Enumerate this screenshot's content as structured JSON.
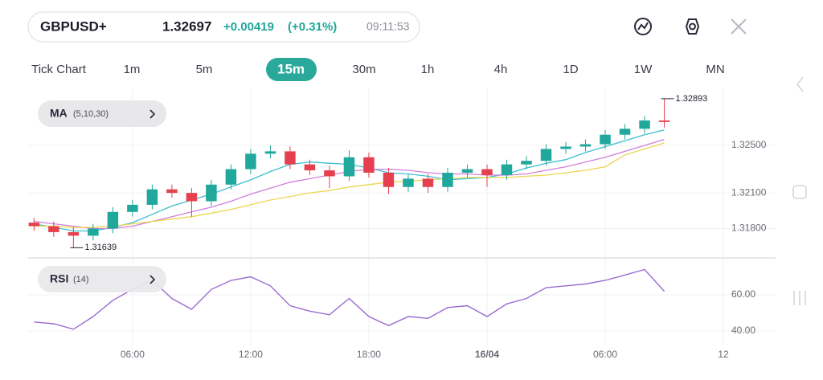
{
  "header": {
    "symbol": "GBPUSD+",
    "price": "1.32697",
    "change": "+0.00419",
    "change_percent": "(+0.31%)",
    "time": "09:11:53"
  },
  "timeframes": [
    "Tick Chart",
    "1m",
    "5m",
    "15m",
    "30m",
    "1h",
    "4h",
    "1D",
    "1W",
    "MN"
  ],
  "active_timeframe_index": 3,
  "chart_data": [
    {
      "type": "candlestick",
      "indicator": "MA",
      "params": "(5,10,30)",
      "up_color": "#1fa89b",
      "down_color": "#e5404f",
      "x": [
        1,
        2,
        3,
        4,
        5,
        6,
        7,
        8,
        9,
        10,
        11,
        12,
        13,
        14,
        15,
        16,
        17,
        18,
        19,
        20,
        21,
        22,
        23,
        24,
        25,
        26,
        27,
        28,
        29,
        30,
        31,
        32,
        33
      ],
      "open": [
        1.3185,
        1.3182,
        1.3177,
        1.3174,
        1.318,
        1.3194,
        1.32,
        1.3213,
        1.321,
        1.3203,
        1.3217,
        1.323,
        1.3243,
        1.3245,
        1.3234,
        1.3229,
        1.3224,
        1.324,
        1.3227,
        1.3215,
        1.3222,
        1.3215,
        1.3227,
        1.323,
        1.3225,
        1.3234,
        1.3237,
        1.3247,
        1.3249,
        1.3251,
        1.3259,
        1.3264,
        1.3271
      ],
      "high": [
        1.3189,
        1.3186,
        1.3181,
        1.3184,
        1.3198,
        1.3204,
        1.3217,
        1.3217,
        1.3214,
        1.3221,
        1.3234,
        1.3247,
        1.325,
        1.3249,
        1.3238,
        1.3233,
        1.3246,
        1.3244,
        1.3231,
        1.3226,
        1.3226,
        1.3231,
        1.3234,
        1.3234,
        1.3238,
        1.3241,
        1.3251,
        1.3253,
        1.3255,
        1.3263,
        1.3268,
        1.3275,
        1.32893
      ],
      "low": [
        1.3178,
        1.3173,
        1.31639,
        1.317,
        1.3176,
        1.319,
        1.3196,
        1.3206,
        1.319,
        1.3199,
        1.3213,
        1.3226,
        1.3239,
        1.323,
        1.3225,
        1.3214,
        1.322,
        1.3223,
        1.3209,
        1.3211,
        1.321,
        1.3211,
        1.3223,
        1.3215,
        1.3221,
        1.323,
        1.3233,
        1.3243,
        1.3245,
        1.3247,
        1.3255,
        1.326,
        1.3265
      ],
      "close": [
        1.3182,
        1.3177,
        1.3174,
        1.318,
        1.3194,
        1.32,
        1.3213,
        1.321,
        1.3203,
        1.3217,
        1.323,
        1.3243,
        1.3245,
        1.3234,
        1.3229,
        1.3224,
        1.324,
        1.3227,
        1.3215,
        1.3222,
        1.3215,
        1.3227,
        1.323,
        1.3225,
        1.3234,
        1.3237,
        1.3247,
        1.3249,
        1.3251,
        1.3259,
        1.3264,
        1.3271,
        1.32697
      ],
      "series": [
        {
          "color": "#3bbfd0",
          "values": [
            1.3184,
            1.3181,
            1.3178,
            1.3178,
            1.3181,
            1.3185,
            1.3192,
            1.3199,
            1.3204,
            1.3209,
            1.3215,
            1.3221,
            1.3228,
            1.3234,
            1.3236,
            1.3235,
            1.3234,
            1.3231,
            1.3227,
            1.3226,
            1.3224,
            1.3221,
            1.3222,
            1.3223,
            1.3226,
            1.3231,
            1.3235,
            1.3238,
            1.3244,
            1.3249,
            1.3254,
            1.3259,
            1.3263
          ]
        },
        {
          "color": "#d27fd9",
          "values": [
            1.3186,
            1.3184,
            1.3182,
            1.318,
            1.318,
            1.3182,
            1.3186,
            1.319,
            1.3194,
            1.3198,
            1.3203,
            1.3209,
            1.3214,
            1.3219,
            1.3222,
            1.3225,
            1.3228,
            1.323,
            1.323,
            1.3229,
            1.3227,
            1.3226,
            1.3226,
            1.3225,
            1.3225,
            1.3226,
            1.3229,
            1.3232,
            1.3236,
            1.324,
            1.3245,
            1.325,
            1.3255
          ]
        },
        {
          "color": "#ecd64e",
          "values": [
            1.3182,
            1.3182,
            1.3181,
            1.3181,
            1.3182,
            1.3184,
            1.3186,
            1.3188,
            1.319,
            1.3193,
            1.3196,
            1.32,
            1.3204,
            1.3207,
            1.321,
            1.3212,
            1.3215,
            1.3217,
            1.3219,
            1.322,
            1.3221,
            1.3222,
            1.3223,
            1.3223,
            1.3223,
            1.3224,
            1.3225,
            1.3227,
            1.3229,
            1.3232,
            1.3242,
            1.3247,
            1.3252
          ]
        }
      ],
      "xlim": [
        0.7,
        38.65
      ],
      "ylim": [
        1.3156,
        1.3298
      ],
      "yticks": [
        {
          "value": 1.325,
          "label": "1.32500"
        },
        {
          "value": 1.321,
          "label": "1.32100"
        },
        {
          "value": 1.318,
          "label": "1.31800"
        }
      ],
      "grid": true
    },
    {
      "type": "line",
      "indicator": "RSI",
      "params": "(14)",
      "x": [
        1,
        2,
        3,
        4,
        5,
        6,
        7,
        8,
        9,
        10,
        11,
        12,
        13,
        14,
        15,
        16,
        17,
        18,
        19,
        20,
        21,
        22,
        23,
        24,
        25,
        26,
        27,
        28,
        29,
        30,
        31,
        32,
        33
      ],
      "series": [
        {
          "color": "#9a6bd2",
          "values": [
            45,
            44,
            41,
            48,
            57,
            63,
            68,
            58,
            52,
            63,
            68,
            70,
            65,
            54,
            51,
            49,
            58,
            48,
            43,
            48,
            47,
            53,
            54,
            48,
            55,
            58,
            64,
            65,
            66,
            68,
            71,
            74,
            62
          ]
        }
      ],
      "xlim": [
        0.7,
        38.65
      ],
      "ylim": [
        32,
        80
      ],
      "yticks": [
        {
          "value": 60,
          "label": "60.00"
        },
        {
          "value": 40,
          "label": "40.00"
        }
      ],
      "xticks": [
        {
          "value": 6,
          "label": "06:00"
        },
        {
          "value": 12,
          "label": "12:00"
        },
        {
          "value": 18,
          "label": "18:00"
        },
        {
          "value": 24,
          "label": "16/04"
        },
        {
          "value": 30,
          "label": "06:00"
        },
        {
          "value": 36,
          "label": "12"
        }
      ],
      "grid": true
    }
  ]
}
